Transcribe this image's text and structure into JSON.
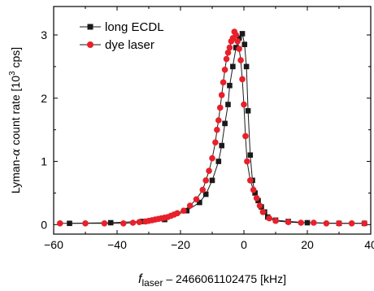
{
  "chart_data": {
    "type": "line",
    "title": "",
    "xlabel_italic": "f",
    "xlabel_subscript": "laser",
    "xlabel_rest": " – 2466061102475 [kHz]",
    "ylabel_prefix": "Lyman-",
    "ylabel_greek": "α",
    "ylabel_middle": " count rate [10",
    "ylabel_sup": "3",
    "ylabel_suffix": " cps]",
    "xlim": [
      -60,
      40
    ],
    "ylim": [
      -0.15,
      3.45
    ],
    "xticks": [
      -60,
      -40,
      -20,
      0,
      20,
      40
    ],
    "yticks": [
      0,
      1,
      2,
      3
    ],
    "grid": false,
    "legend_position": "top-left",
    "series": [
      {
        "name": "long ECDL",
        "marker": "square",
        "color": "#1a1a1a",
        "points": [
          [
            -55,
            0.02
          ],
          [
            -42,
            0.03
          ],
          [
            -32,
            0.05
          ],
          [
            -25,
            0.08
          ],
          [
            -18,
            0.22
          ],
          [
            -14,
            0.35
          ],
          [
            -12,
            0.48
          ],
          [
            -10,
            0.7
          ],
          [
            -8,
            1.0
          ],
          [
            -7,
            1.25
          ],
          [
            -6,
            1.6
          ],
          [
            -5,
            1.9
          ],
          [
            -4.5,
            2.2
          ],
          [
            -3.5,
            2.5
          ],
          [
            -2.5,
            2.8
          ],
          [
            -1.5,
            2.95
          ],
          [
            -0.5,
            3.02
          ],
          [
            0.2,
            2.85
          ],
          [
            0.8,
            2.5
          ],
          [
            1.3,
            1.8
          ],
          [
            2,
            1.1
          ],
          [
            2.7,
            0.7
          ],
          [
            3.5,
            0.5
          ],
          [
            4.5,
            0.38
          ],
          [
            5.5,
            0.28
          ],
          [
            6.5,
            0.2
          ],
          [
            7.5,
            0.12
          ],
          [
            10,
            0.07
          ],
          [
            14,
            0.05
          ],
          [
            20,
            0.03
          ],
          [
            30,
            0.02
          ],
          [
            38,
            0.02
          ]
        ]
      },
      {
        "name": "dye laser",
        "marker": "circle",
        "color": "#e8202a",
        "points": [
          [
            -58,
            0.02
          ],
          [
            -50,
            0.02
          ],
          [
            -44,
            0.02
          ],
          [
            -38,
            0.02
          ],
          [
            -35,
            0.03
          ],
          [
            -33,
            0.04
          ],
          [
            -31,
            0.05
          ],
          [
            -30,
            0.06
          ],
          [
            -29,
            0.07
          ],
          [
            -28,
            0.08
          ],
          [
            -27,
            0.09
          ],
          [
            -26,
            0.1
          ],
          [
            -25,
            0.11
          ],
          [
            -24,
            0.12
          ],
          [
            -23,
            0.14
          ],
          [
            -22,
            0.16
          ],
          [
            -21,
            0.18
          ],
          [
            -19,
            0.22
          ],
          [
            -17,
            0.3
          ],
          [
            -15,
            0.4
          ],
          [
            -13,
            0.55
          ],
          [
            -12,
            0.7
          ],
          [
            -11,
            0.85
          ],
          [
            -10,
            1.05
          ],
          [
            -9,
            1.3
          ],
          [
            -8.5,
            1.5
          ],
          [
            -8,
            1.65
          ],
          [
            -7.5,
            1.85
          ],
          [
            -7,
            2.05
          ],
          [
            -6.5,
            2.25
          ],
          [
            -6,
            2.45
          ],
          [
            -5.5,
            2.62
          ],
          [
            -5,
            2.72
          ],
          [
            -4.5,
            2.8
          ],
          [
            -4,
            2.9
          ],
          [
            -3.5,
            2.95
          ],
          [
            -3,
            3.05
          ],
          [
            -2.5,
            3.0
          ],
          [
            -2,
            2.9
          ],
          [
            -1.5,
            2.78
          ],
          [
            -1,
            2.6
          ],
          [
            -0.5,
            2.3
          ],
          [
            0,
            1.9
          ],
          [
            0.5,
            1.4
          ],
          [
            1,
            1.0
          ],
          [
            2,
            0.7
          ],
          [
            3,
            0.55
          ],
          [
            4,
            0.42
          ],
          [
            5,
            0.3
          ],
          [
            6,
            0.2
          ],
          [
            8,
            0.1
          ],
          [
            10,
            0.06
          ],
          [
            14,
            0.04
          ],
          [
            18,
            0.03
          ],
          [
            22,
            0.03
          ],
          [
            26,
            0.02
          ],
          [
            30,
            0.02
          ],
          [
            34,
            0.02
          ],
          [
            38,
            0.02
          ]
        ]
      }
    ]
  }
}
